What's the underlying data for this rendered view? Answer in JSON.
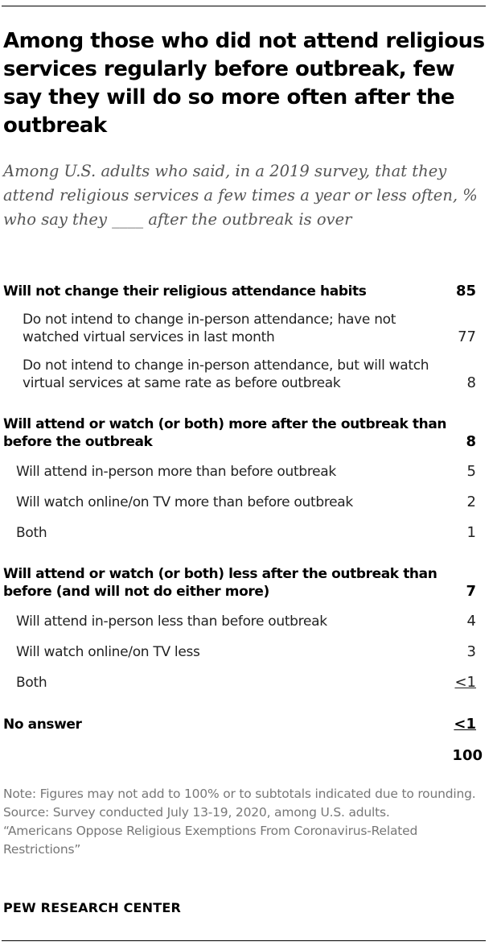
{
  "header": {
    "title": "Among those who did not attend religious services regularly before outbreak, few say they will do so more often after the outbreak",
    "subtitle": "Among U.S. adults who said, in a 2019 survey, that they attend religious services a few times a year or less often, % who say they ____ after the outbreak is over"
  },
  "chart_data": {
    "type": "table",
    "rows": [
      {
        "label": "Will not change their religious attendance habits",
        "value": "85",
        "level": 0
      },
      {
        "label": "Do not intend to change in-person attendance; have not watched virtual services in last month",
        "value": "77",
        "level": 2
      },
      {
        "label": "Do not intend to change in-person attendance, but will watch virtual services at same rate as before outbreak",
        "value": "8",
        "level": 2
      },
      {
        "label": "Will attend or watch (or both) more after the outbreak than before the outbreak",
        "value": "8",
        "level": 0
      },
      {
        "label": "Will attend in-person more than before outbreak",
        "value": "5",
        "level": 1
      },
      {
        "label": "Will watch online/on TV more than before outbreak",
        "value": "2",
        "level": 1
      },
      {
        "label": "Both",
        "value": "1",
        "level": 1
      },
      {
        "label": "Will attend or watch (or both) less after the outbreak than before (and will not do either more)",
        "value": "7",
        "level": 0
      },
      {
        "label": "Will attend in-person less than before outbreak",
        "value": "4",
        "level": 1
      },
      {
        "label": "Will watch online/on TV less",
        "value": "3",
        "level": 1
      },
      {
        "label": "Both",
        "value": "<1",
        "level": 1
      },
      {
        "label": "No answer",
        "value": "<1",
        "level": 0
      }
    ],
    "total": "100"
  },
  "footer": {
    "note": "Note: Figures may not add to 100% or to subtotals indicated due to rounding.",
    "source": "Source: Survey conducted July 13-19, 2020, among U.S. adults.",
    "report": "“Americans Oppose Religious Exemptions From Coronavirus-Related Restrictions”",
    "org": "PEW RESEARCH CENTER"
  }
}
